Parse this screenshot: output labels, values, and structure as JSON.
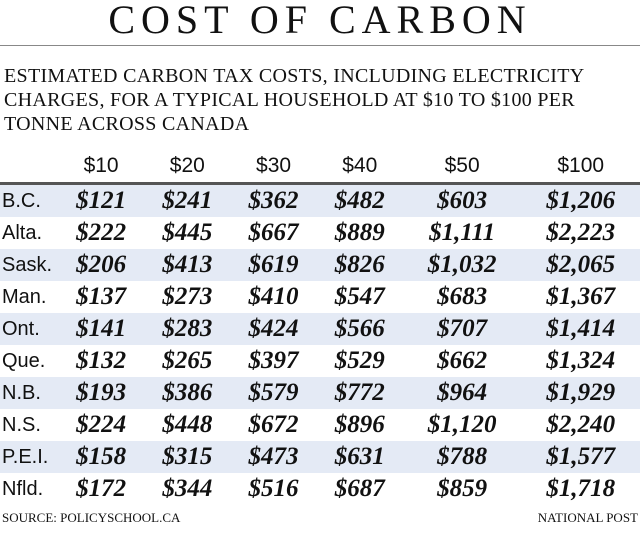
{
  "title": "COST OF CARBON",
  "subtitle": "ESTIMATED CARBON TAX COSTS, INCLUDING ELECTRICITY CHARGES, FOR A TYPICAL HOUSEHOLD AT $10 TO $100 PER TONNE ACROSS CANADA",
  "source": "SOURCE: POLICYSCHOOL.CA",
  "credit": "NATIONAL POST",
  "colors": {
    "band": "#e4eaf5"
  },
  "chart_data": {
    "type": "table",
    "columns": [
      "$10",
      "$20",
      "$30",
      "$40",
      "$50",
      "$100"
    ],
    "rows": [
      {
        "label": "B.C.",
        "values": [
          "$121",
          "$241",
          "$362",
          "$482",
          "$603",
          "$1,206"
        ]
      },
      {
        "label": "Alta.",
        "values": [
          "$222",
          "$445",
          "$667",
          "$889",
          "$1,111",
          "$2,223"
        ]
      },
      {
        "label": "Sask.",
        "values": [
          "$206",
          "$413",
          "$619",
          "$826",
          "$1,032",
          "$2,065"
        ]
      },
      {
        "label": "Man.",
        "values": [
          "$137",
          "$273",
          "$410",
          "$547",
          "$683",
          "$1,367"
        ]
      },
      {
        "label": "Ont.",
        "values": [
          "$141",
          "$283",
          "$424",
          "$566",
          "$707",
          "$1,414"
        ]
      },
      {
        "label": "Que.",
        "values": [
          "$132",
          "$265",
          "$397",
          "$529",
          "$662",
          "$1,324"
        ]
      },
      {
        "label": "N.B.",
        "values": [
          "$193",
          "$386",
          "$579",
          "$772",
          "$964",
          "$1,929"
        ]
      },
      {
        "label": "N.S.",
        "values": [
          "$224",
          "$448",
          "$672",
          "$896",
          "$1,120",
          "$2,240"
        ]
      },
      {
        "label": "P.E.I.",
        "values": [
          "$158",
          "$315",
          "$473",
          "$631",
          "$788",
          "$1,577"
        ]
      },
      {
        "label": "Nfld.",
        "values": [
          "$172",
          "$344",
          "$516",
          "$687",
          "$859",
          "$1,718"
        ]
      }
    ]
  }
}
